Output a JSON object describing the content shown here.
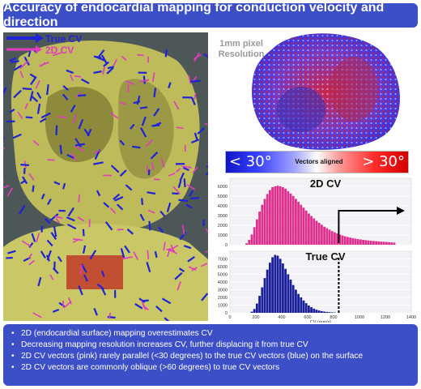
{
  "title": "Accuracy of endocardial mapping for conduction velocity and direction",
  "legend": {
    "true_cv": "True CV",
    "twod_cv": "2D CV",
    "true_color": "#1f23d8",
    "twod_color": "#e23bbf"
  },
  "resolution_label_line1": "1mm pixel",
  "resolution_label_line2": "Resolution",
  "colorbar": {
    "left_label": "< 30°",
    "mid_label": "Vectors aligned",
    "right_label": "> 30°"
  },
  "chart_data": [
    {
      "type": "bar",
      "title": "2D CV",
      "color": "#e0308f",
      "bin_width": 20,
      "x": [
        130,
        150,
        170,
        190,
        210,
        230,
        250,
        270,
        290,
        310,
        330,
        350,
        370,
        390,
        410,
        430,
        450,
        470,
        490,
        510,
        530,
        550,
        570,
        590,
        610,
        630,
        650,
        670,
        690,
        710,
        730,
        750,
        770,
        790,
        810,
        830,
        850,
        870,
        890,
        910,
        930,
        950,
        970,
        990,
        1010,
        1030,
        1050,
        1070,
        1090,
        1110,
        1130,
        1150,
        1170,
        1190,
        1210,
        1230,
        1250,
        1270
      ],
      "values": [
        150,
        500,
        1050,
        1800,
        2600,
        3400,
        4100,
        4700,
        5200,
        5600,
        5900,
        6000,
        6050,
        6000,
        5900,
        5750,
        5500,
        5250,
        5000,
        4700,
        4400,
        4100,
        3800,
        3500,
        3200,
        2950,
        2700,
        2450,
        2250,
        2050,
        1850,
        1700,
        1550,
        1400,
        1280,
        1150,
        1050,
        950,
        870,
        800,
        740,
        680,
        630,
        580,
        540,
        500,
        470,
        440,
        410,
        380,
        360,
        340,
        320,
        300,
        280,
        260,
        240,
        220
      ],
      "yticks": [
        0,
        1000,
        2000,
        3000,
        4000,
        5000,
        6000
      ],
      "xlim": [
        0,
        1400
      ]
    },
    {
      "type": "bar",
      "title": "True CV",
      "color": "#1b1f9a",
      "bin_width": 20,
      "x": [
        170,
        190,
        210,
        230,
        250,
        270,
        290,
        310,
        330,
        350,
        370,
        390,
        410,
        430,
        450,
        470,
        490,
        510,
        530,
        550,
        570,
        590,
        610,
        630,
        650,
        670,
        690,
        710,
        730,
        750,
        770,
        790,
        810
      ],
      "values": [
        150,
        500,
        1200,
        2200,
        3300,
        4500,
        5600,
        6500,
        7200,
        7500,
        7400,
        7000,
        6400,
        5700,
        5000,
        4300,
        3600,
        3000,
        2450,
        2000,
        1600,
        1250,
        950,
        720,
        540,
        400,
        300,
        220,
        160,
        120,
        90,
        60,
        40
      ],
      "yticks": [
        0,
        1000,
        2000,
        3000,
        4000,
        5000,
        6000,
        7000
      ],
      "xticks": [
        0,
        200,
        400,
        600,
        800,
        1000,
        1200,
        1400
      ],
      "xlim": [
        0,
        1400
      ],
      "xlabel": "CV (mm/s)"
    }
  ],
  "bullets": [
    "2D (endocardial surface) mapping overestimates CV",
    "Decreasing mapping resolution increases CV, further displacing it from true CV",
    "2D CV vectors (pink) rarely parallel (<30 degrees) to the true CV vectors (blue) on the surface",
    "2D CV vectors are commonly oblique (>60 degrees) to true CV vectors"
  ]
}
